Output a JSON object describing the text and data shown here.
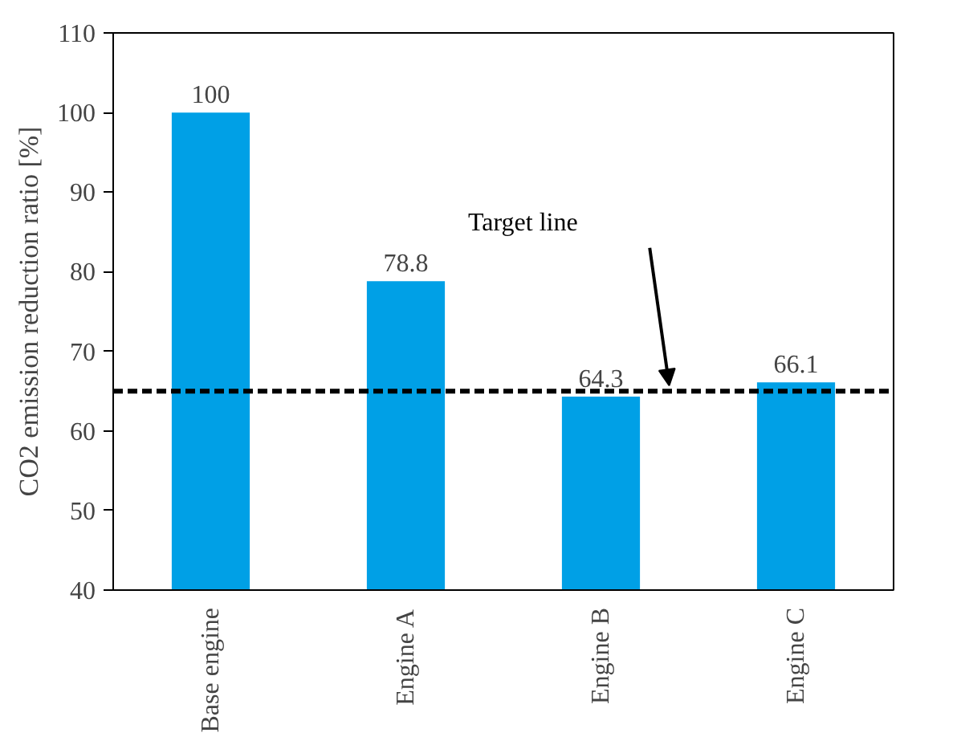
{
  "chart_data": {
    "type": "bar",
    "ylabel": "CO2 emission reduction ratio [%]",
    "categories": [
      "Base engine",
      "Engine A",
      "Engine B",
      "Engine C"
    ],
    "values": [
      100,
      78.8,
      64.3,
      66.1
    ],
    "color": "#00a0e6",
    "ylim": [
      40,
      110
    ],
    "yticks": [
      40,
      50,
      60,
      70,
      80,
      90,
      100,
      110
    ],
    "data_labels": true,
    "grid": false,
    "annotations": [
      "Target line"
    ],
    "ref_lines": [
      {
        "axis": "y",
        "value": 65,
        "color": "#000000",
        "line_style": "dashed"
      }
    ]
  }
}
